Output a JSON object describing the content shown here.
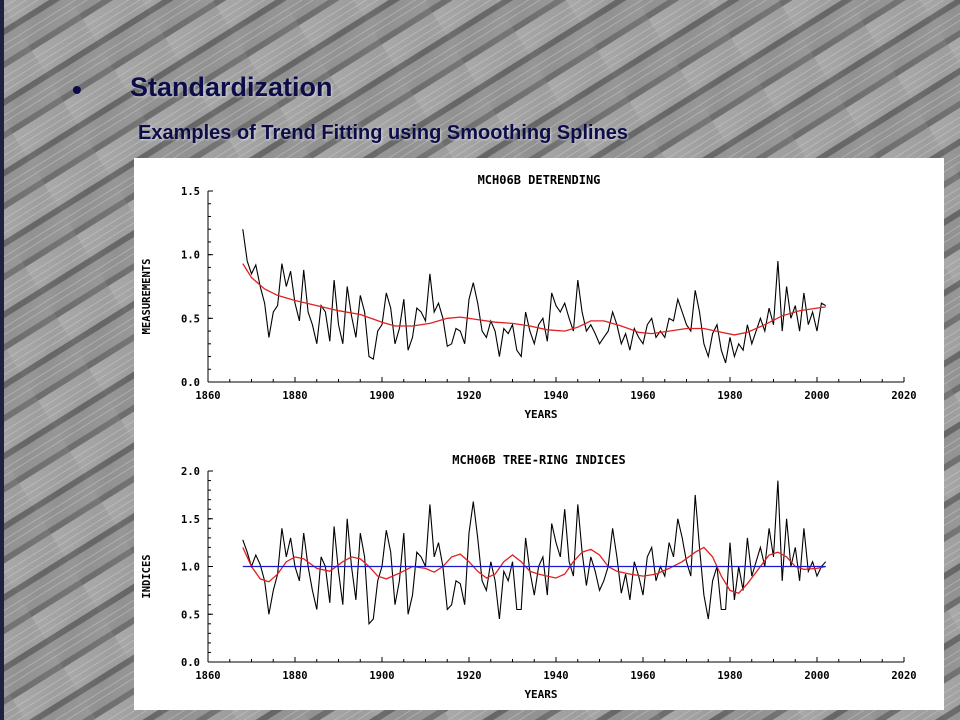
{
  "slide": {
    "bullet": "•",
    "heading": "Standardization",
    "subheading": "Examples of Trend Fitting using Smoothing Splines"
  },
  "colors": {
    "heading": "#0c0c4a",
    "series_raw": "#000000",
    "spline": "#e02020",
    "mean_line": "#1a1acc"
  },
  "chart_data": [
    {
      "type": "line",
      "title": "MCH06B DETRENDING",
      "xlabel": "YEARS",
      "ylabel": "MEASUREMENTS",
      "xlim": [
        1860,
        2020
      ],
      "ylim": [
        0.0,
        1.5
      ],
      "xticks": [
        1860,
        1880,
        1900,
        1920,
        1940,
        1960,
        1980,
        2000,
        2020
      ],
      "yticks": [
        0.0,
        0.5,
        1.0,
        1.5
      ],
      "ytick_labels": [
        "0.0",
        "0.5",
        "1.0",
        "1.5"
      ],
      "grid": false,
      "x_start": 1868,
      "series": [
        {
          "style": "raw",
          "color": "#000000",
          "values": [
            1.2,
            0.95,
            0.85,
            0.92,
            0.75,
            0.62,
            0.35,
            0.55,
            0.6,
            0.93,
            0.75,
            0.87,
            0.62,
            0.48,
            0.88,
            0.55,
            0.45,
            0.3,
            0.6,
            0.55,
            0.32,
            0.8,
            0.45,
            0.3,
            0.75,
            0.52,
            0.35,
            0.68,
            0.55,
            0.2,
            0.18,
            0.4,
            0.45,
            0.7,
            0.58,
            0.3,
            0.42,
            0.65,
            0.25,
            0.35,
            0.58,
            0.55,
            0.48,
            0.85,
            0.55,
            0.62,
            0.5,
            0.28,
            0.3,
            0.42,
            0.4,
            0.3,
            0.65,
            0.78,
            0.62,
            0.4,
            0.35,
            0.48,
            0.4,
            0.2,
            0.42,
            0.38,
            0.45,
            0.25,
            0.2,
            0.55,
            0.4,
            0.3,
            0.45,
            0.5,
            0.32,
            0.7,
            0.6,
            0.55,
            0.62,
            0.5,
            0.4,
            0.8,
            0.55,
            0.4,
            0.45,
            0.38,
            0.3,
            0.35,
            0.4,
            0.55,
            0.45,
            0.3,
            0.38,
            0.25,
            0.42,
            0.35,
            0.3,
            0.45,
            0.5,
            0.35,
            0.4,
            0.35,
            0.5,
            0.48,
            0.65,
            0.55,
            0.45,
            0.4,
            0.72,
            0.55,
            0.3,
            0.2,
            0.38,
            0.45,
            0.25,
            0.15,
            0.35,
            0.2,
            0.3,
            0.25,
            0.45,
            0.3,
            0.4,
            0.5,
            0.4,
            0.58,
            0.45,
            0.95,
            0.4,
            0.75,
            0.5,
            0.6,
            0.4,
            0.7,
            0.45,
            0.55,
            0.4,
            0.62,
            0.6
          ]
        },
        {
          "style": "spline",
          "color": "#e02020",
          "points": [
            [
              1868,
              0.93
            ],
            [
              1870,
              0.82
            ],
            [
              1873,
              0.73
            ],
            [
              1876,
              0.68
            ],
            [
              1880,
              0.64
            ],
            [
              1885,
              0.6
            ],
            [
              1890,
              0.56
            ],
            [
              1895,
              0.53
            ],
            [
              1900,
              0.47
            ],
            [
              1903,
              0.44
            ],
            [
              1907,
              0.44
            ],
            [
              1911,
              0.46
            ],
            [
              1915,
              0.5
            ],
            [
              1918,
              0.51
            ],
            [
              1922,
              0.49
            ],
            [
              1926,
              0.47
            ],
            [
              1930,
              0.46
            ],
            [
              1934,
              0.44
            ],
            [
              1938,
              0.41
            ],
            [
              1942,
              0.4
            ],
            [
              1945,
              0.43
            ],
            [
              1948,
              0.48
            ],
            [
              1951,
              0.48
            ],
            [
              1955,
              0.44
            ],
            [
              1959,
              0.39
            ],
            [
              1962,
              0.38
            ],
            [
              1966,
              0.4
            ],
            [
              1970,
              0.42
            ],
            [
              1974,
              0.42
            ],
            [
              1978,
              0.39
            ],
            [
              1981,
              0.37
            ],
            [
              1984,
              0.39
            ],
            [
              1988,
              0.45
            ],
            [
              1992,
              0.52
            ],
            [
              1996,
              0.56
            ],
            [
              2000,
              0.58
            ],
            [
              2002,
              0.59
            ]
          ]
        }
      ]
    },
    {
      "type": "line",
      "title": "MCH06B TREE-RING INDICES",
      "xlabel": "YEARS",
      "ylabel": "INDICES",
      "xlim": [
        1860,
        2020
      ],
      "ylim": [
        0.0,
        2.0
      ],
      "xticks": [
        1860,
        1880,
        1900,
        1920,
        1940,
        1960,
        1980,
        2000,
        2020
      ],
      "yticks": [
        0.0,
        0.5,
        1.0,
        1.5,
        2.0
      ],
      "ytick_labels": [
        "0.0",
        "0.5",
        "1.0",
        "1.5",
        "2.0"
      ],
      "grid": false,
      "x_start": 1868,
      "reference_line": 1.0,
      "series": [
        {
          "style": "raw",
          "color": "#000000",
          "values": [
            1.28,
            1.15,
            1.0,
            1.12,
            1.02,
            0.85,
            0.5,
            0.75,
            0.92,
            1.4,
            1.1,
            1.3,
            1.0,
            0.85,
            1.35,
            1.0,
            0.75,
            0.55,
            1.1,
            1.0,
            0.62,
            1.42,
            0.95,
            0.6,
            1.5,
            1.0,
            0.65,
            1.35,
            1.1,
            0.4,
            0.45,
            0.85,
            1.0,
            1.38,
            1.15,
            0.6,
            0.85,
            1.35,
            0.5,
            0.7,
            1.15,
            1.1,
            1.0,
            1.65,
            1.1,
            1.25,
            1.0,
            0.55,
            0.6,
            0.85,
            0.82,
            0.6,
            1.35,
            1.68,
            1.3,
            0.85,
            0.75,
            1.05,
            0.85,
            0.45,
            0.95,
            0.85,
            1.05,
            0.55,
            0.55,
            1.3,
            0.95,
            0.7,
            1.0,
            1.1,
            0.7,
            1.45,
            1.25,
            1.1,
            1.6,
            1.05,
            0.9,
            1.65,
            1.15,
            0.8,
            1.1,
            0.95,
            0.75,
            0.85,
            1.0,
            1.4,
            1.1,
            0.72,
            0.92,
            0.65,
            1.05,
            0.9,
            0.7,
            1.1,
            1.2,
            0.85,
            1.0,
            0.9,
            1.25,
            1.1,
            1.5,
            1.3,
            1.05,
            0.9,
            1.75,
            1.2,
            0.7,
            0.45,
            0.85,
            1.0,
            0.55,
            0.55,
            1.25,
            0.65,
            1.0,
            0.75,
            1.3,
            0.9,
            1.05,
            1.2,
            1.0,
            1.4,
            1.1,
            1.9,
            0.85,
            1.5,
            1.0,
            1.2,
            0.85,
            1.4,
            0.95,
            1.05,
            0.9,
            1.0,
            1.05
          ]
        },
        {
          "style": "spline",
          "color": "#e02020",
          "points": [
            [
              1868,
              1.2
            ],
            [
              1870,
              1.0
            ],
            [
              1872,
              0.87
            ],
            [
              1874,
              0.84
            ],
            [
              1876,
              0.92
            ],
            [
              1878,
              1.05
            ],
            [
              1880,
              1.1
            ],
            [
              1882,
              1.08
            ],
            [
              1885,
              0.98
            ],
            [
              1888,
              0.95
            ],
            [
              1891,
              1.05
            ],
            [
              1893,
              1.1
            ],
            [
              1895,
              1.08
            ],
            [
              1897,
              1.0
            ],
            [
              1899,
              0.9
            ],
            [
              1901,
              0.87
            ],
            [
              1904,
              0.93
            ],
            [
              1907,
              1.0
            ],
            [
              1910,
              0.98
            ],
            [
              1912,
              0.94
            ],
            [
              1914,
              1.0
            ],
            [
              1916,
              1.1
            ],
            [
              1918,
              1.13
            ],
            [
              1920,
              1.05
            ],
            [
              1922,
              0.95
            ],
            [
              1924,
              0.88
            ],
            [
              1926,
              0.92
            ],
            [
              1928,
              1.05
            ],
            [
              1930,
              1.12
            ],
            [
              1932,
              1.05
            ],
            [
              1934,
              0.95
            ],
            [
              1936,
              0.92
            ],
            [
              1938,
              0.9
            ],
            [
              1940,
              0.88
            ],
            [
              1942,
              0.92
            ],
            [
              1944,
              1.05
            ],
            [
              1946,
              1.15
            ],
            [
              1948,
              1.18
            ],
            [
              1950,
              1.12
            ],
            [
              1952,
              1.0
            ],
            [
              1954,
              0.95
            ],
            [
              1957,
              0.92
            ],
            [
              1960,
              0.9
            ],
            [
              1963,
              0.92
            ],
            [
              1966,
              0.98
            ],
            [
              1969,
              1.05
            ],
            [
              1972,
              1.15
            ],
            [
              1974,
              1.2
            ],
            [
              1976,
              1.1
            ],
            [
              1978,
              0.9
            ],
            [
              1980,
              0.75
            ],
            [
              1982,
              0.72
            ],
            [
              1984,
              0.82
            ],
            [
              1987,
              1.0
            ],
            [
              1989,
              1.12
            ],
            [
              1991,
              1.15
            ],
            [
              1993,
              1.1
            ],
            [
              1995,
              1.0
            ],
            [
              1997,
              0.97
            ],
            [
              2000,
              0.98
            ],
            [
              2002,
              1.0
            ]
          ]
        },
        {
          "style": "reference",
          "color": "#1a1acc",
          "points": [
            [
              1868,
              1.0
            ],
            [
              2002,
              1.0
            ]
          ]
        }
      ]
    }
  ]
}
